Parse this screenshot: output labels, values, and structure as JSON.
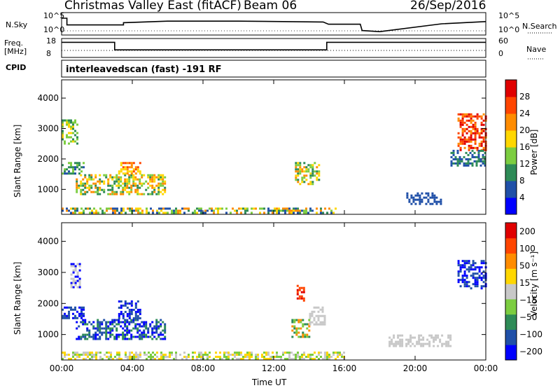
{
  "header": {
    "title": "Christmas Valley East (fitACF)",
    "beam": "Beam 06",
    "date": "26/Sep/2016"
  },
  "nsky_panel": {
    "left_label": "N.Sky",
    "right_label": "N.Search",
    "left_ticks": [
      "10^5",
      "10^0"
    ],
    "right_ticks": [
      "10^5",
      "10^0"
    ]
  },
  "freq_panel": {
    "left_label_1": "Freq.",
    "left_label_2": "[MHz]",
    "right_label": "Nave",
    "left_ticks": [
      "18",
      "8"
    ],
    "right_ticks": [
      "60",
      "0"
    ]
  },
  "cpid": {
    "label": "CPID",
    "program": "interleavedscan (fast) -191 RF"
  },
  "chart_data": [
    {
      "type": "heatmap",
      "panel": "power",
      "ylabel": "Slant Range [km]",
      "y_ticks": [
        "1000",
        "2000",
        "3000",
        "4000"
      ],
      "ylim": [
        180,
        4600
      ],
      "xlim": [
        0,
        24
      ],
      "colorbar_label": "Power [dB]",
      "colorbar_ticks": [
        "4",
        "8",
        "12",
        "16",
        "20",
        "24",
        "28"
      ],
      "colors": [
        "#0000ff",
        "#2050a8",
        "#2e8b57",
        "#7ccd40",
        "#ffd700",
        "#ff8c00",
        "#ff4500",
        "#e00000"
      ],
      "regions": [
        {
          "t0": 0.0,
          "t1": 1.2,
          "r0": 1500,
          "r1": 1900,
          "cls": [
            1,
            2,
            3
          ]
        },
        {
          "t0": 0.8,
          "t1": 5.8,
          "r0": 850,
          "r1": 1500,
          "cls": [
            2,
            3,
            4,
            5
          ]
        },
        {
          "t0": 3.2,
          "t1": 4.5,
          "r0": 1500,
          "r1": 1900,
          "cls": [
            4,
            5,
            6
          ]
        },
        {
          "t0": 0.0,
          "t1": 0.9,
          "r0": 2500,
          "r1": 3300,
          "cls": [
            2,
            3,
            4
          ]
        },
        {
          "t0": 0.0,
          "t1": 15.5,
          "r0": 220,
          "r1": 400,
          "cls": [
            1,
            2,
            3,
            4,
            5
          ]
        },
        {
          "t0": 13.2,
          "t1": 14.6,
          "r0": 1200,
          "r1": 1900,
          "cls": [
            2,
            3,
            4,
            5
          ]
        },
        {
          "t0": 22.4,
          "t1": 24.0,
          "r0": 2300,
          "r1": 3500,
          "cls": [
            5,
            6,
            7
          ]
        },
        {
          "t0": 22.0,
          "t1": 24.0,
          "r0": 1800,
          "r1": 2300,
          "cls": [
            1,
            2
          ]
        },
        {
          "t0": 19.5,
          "t1": 21.5,
          "r0": 500,
          "r1": 900,
          "cls": [
            1
          ]
        }
      ]
    },
    {
      "type": "heatmap",
      "panel": "velocity",
      "ylabel": "Slant Range [km]",
      "y_ticks": [
        "1000",
        "2000",
        "3000",
        "4000"
      ],
      "ylim": [
        180,
        4600
      ],
      "xlim": [
        0,
        24
      ],
      "x_ticks": [
        "00:00",
        "04:00",
        "08:00",
        "12:00",
        "16:00",
        "20:00",
        "00:00"
      ],
      "xlabel": "Time UT",
      "colorbar_label": "Velocity [m s⁻¹]",
      "colorbar_ticks": [
        "200",
        "100",
        "50",
        "15",
        "−15",
        "−50",
        "−100",
        "−200"
      ],
      "colors": [
        "#0000ff",
        "#2050a8",
        "#2e8b57",
        "#7ccd40",
        "#c8c8c8",
        "#ffd700",
        "#ff8c00",
        "#ff4500",
        "#e00000"
      ],
      "regions": [
        {
          "t0": 0.0,
          "t1": 1.2,
          "r0": 1500,
          "r1": 1900,
          "cls": [
            0,
            1
          ]
        },
        {
          "t0": 0.8,
          "t1": 5.8,
          "r0": 850,
          "r1": 1500,
          "cls": [
            0,
            1,
            2
          ]
        },
        {
          "t0": 3.2,
          "t1": 4.5,
          "r0": 1500,
          "r1": 2100,
          "cls": [
            0,
            1
          ]
        },
        {
          "t0": 0.5,
          "t1": 1.0,
          "r0": 2500,
          "r1": 3300,
          "cls": [
            0,
            4
          ]
        },
        {
          "t0": 0.0,
          "t1": 16.0,
          "r0": 220,
          "r1": 450,
          "cls": [
            3,
            4,
            5
          ]
        },
        {
          "t0": 13.0,
          "t1": 14.0,
          "r0": 900,
          "r1": 1500,
          "cls": [
            2,
            3,
            6
          ]
        },
        {
          "t0": 14.0,
          "t1": 14.9,
          "r0": 1300,
          "r1": 1900,
          "cls": [
            4
          ]
        },
        {
          "t0": 13.3,
          "t1": 13.7,
          "r0": 2100,
          "r1": 2600,
          "cls": [
            8,
            7
          ]
        },
        {
          "t0": 22.4,
          "t1": 24.0,
          "r0": 2500,
          "r1": 3400,
          "cls": [
            0,
            1
          ]
        },
        {
          "t0": 18.5,
          "t1": 22.0,
          "r0": 600,
          "r1": 1000,
          "cls": [
            4
          ]
        }
      ]
    }
  ],
  "line_panels": {
    "nsky_t": [
      0.0,
      0.3,
      0.3,
      3.5,
      3.5,
      6,
      10,
      14.8,
      15.1,
      16.9,
      17.0,
      18.0,
      21.5,
      24.0
    ],
    "nsky_v": [
      0.75,
      0.75,
      0.45,
      0.45,
      0.55,
      0.62,
      0.62,
      0.58,
      0.48,
      0.48,
      0.2,
      0.15,
      0.5,
      0.6
    ],
    "freq_t": [
      0.0,
      3.0,
      3.0,
      15.0,
      15.0,
      24.0
    ],
    "freq_v": [
      0.8,
      0.8,
      0.4,
      0.4,
      0.8,
      0.8
    ]
  }
}
